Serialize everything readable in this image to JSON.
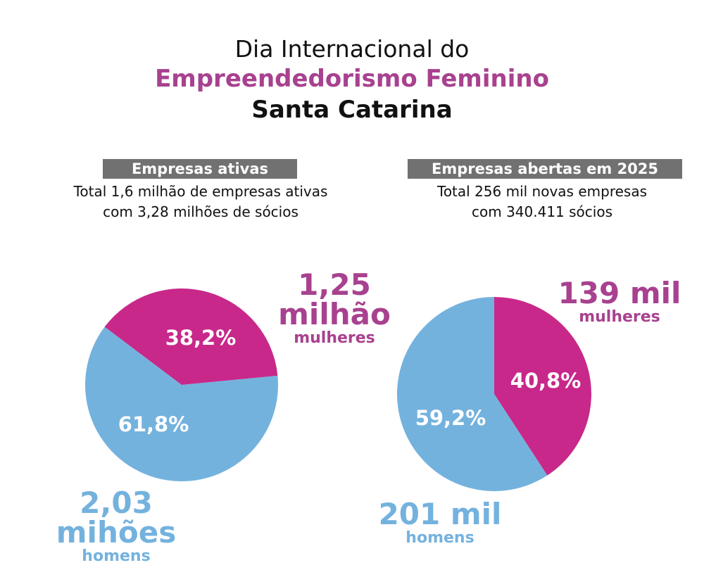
{
  "title": {
    "line1": "Dia Internacional do",
    "line2": "Empreendedorismo Feminino",
    "line3": "Santa Catarina"
  },
  "colors": {
    "mulheres": "#C8288A",
    "homens": "#74B2DE",
    "title_accent": "#A8418F",
    "label_box": "#717171"
  },
  "chart_data": [
    {
      "type": "pie",
      "title": "Empresas ativas",
      "subtitle": [
        "Total  1,6 milhão de empresas ativas",
        "com 3,28 milhões de sócios"
      ],
      "slices": [
        {
          "name": "mulheres",
          "value": 38.2,
          "label": "38,2%",
          "count_label": "1,25 milhão",
          "count_line1": "1,25",
          "count_line2": "milhão",
          "color": "#C8288A"
        },
        {
          "name": "homens",
          "value": 61.8,
          "label": "61,8%",
          "count_line1": "2,03",
          "count_line2": "mihões",
          "color": "#74B2DE"
        }
      ]
    },
    {
      "type": "pie",
      "title": "Empresas abertas em 2025",
      "subtitle": [
        "Total 256 mil novas empresas",
        "com 340.411 sócios"
      ],
      "slices": [
        {
          "name": "mulheres",
          "value": 40.8,
          "label": "40,8%",
          "count_line1": "139 mil",
          "color": "#C8288A"
        },
        {
          "name": "homens",
          "value": 59.2,
          "label": "59,2%",
          "count_line1": "201 mil",
          "color": "#74B2DE"
        }
      ]
    }
  ]
}
